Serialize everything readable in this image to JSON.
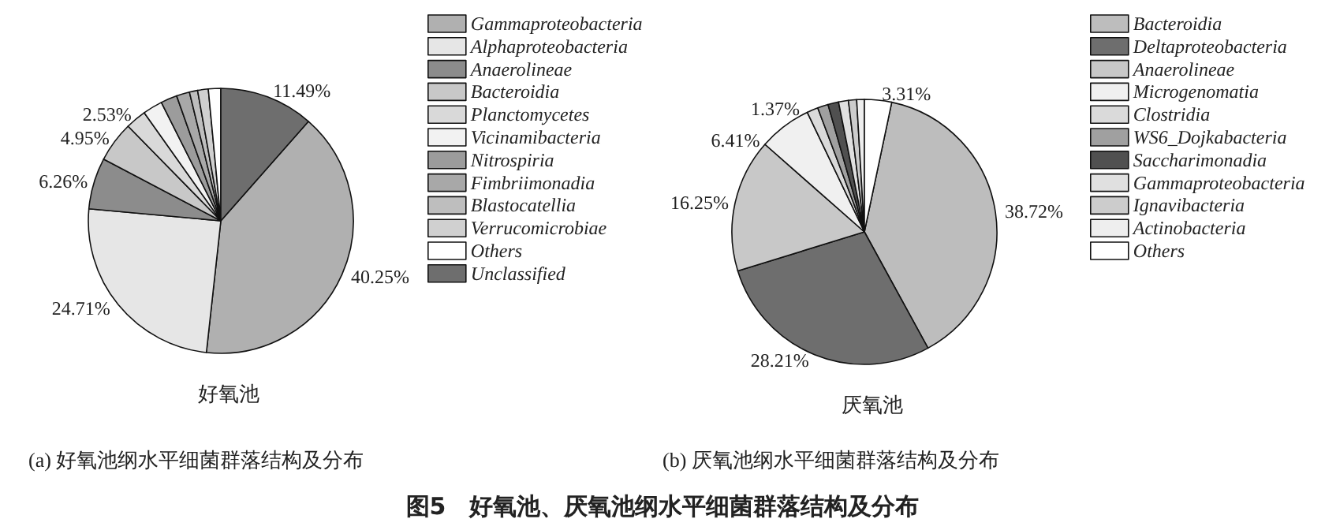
{
  "chart_data": [
    {
      "type": "pie",
      "xlabel": "好氧池",
      "annotations": [
        "(a) 好氧池纲水平细菌群落结构及分布",
        "图5　好氧池、厌氧池纲水平细菌群落结构及分布"
      ],
      "legend": "right",
      "categories": [
        "Gammaproteobacteria",
        "Alphaproteobacteria",
        "Anaerolineae",
        "Bacteroidia",
        "Planctomycetes",
        "Vicinamibacteria",
        "Nitrospiria",
        "Fimbriimonadia",
        "Blastocatellia",
        "Verrucomicrobiae",
        "Others",
        "Unclassified"
      ],
      "values": [
        40.25,
        24.71,
        6.26,
        4.95,
        2.53,
        2.4,
        2.0,
        1.6,
        1.0,
        1.3,
        1.51,
        11.49
      ],
      "value_labels": [
        "40.25%",
        "24.71%",
        "6.26%",
        "4.95%",
        "2.53%",
        null,
        null,
        null,
        null,
        null,
        null,
        "11.49%"
      ],
      "colors": [
        "#b0b0b0",
        "#e6e6e6",
        "#8c8c8c",
        "#c8c8c8",
        "#d9d9d9",
        "#f2f2f2",
        "#9c9c9c",
        "#a8a8a8",
        "#bebebe",
        "#d0d0d0",
        "#ffffff",
        "#6e6e6e"
      ]
    },
    {
      "type": "pie",
      "xlabel": "厌氧池",
      "annotations": [
        "(b) 厌氧池纲水平细菌群落结构及分布"
      ],
      "legend": "right",
      "categories": [
        "Bacteroidia",
        "Deltaproteobacteria",
        "Anaerolineae",
        "Microgenomatia",
        "Clostridia",
        "WS6_Dojkabacteria",
        "Saccharimonadia",
        "Gammaproteobacteria",
        "Ignavibacteria",
        "Actinobacteria",
        "Others"
      ],
      "values": [
        38.72,
        28.21,
        16.25,
        6.41,
        1.37,
        1.3,
        1.3,
        1.2,
        1.0,
        0.93,
        3.31
      ],
      "value_labels": [
        "38.72%",
        "28.21%",
        "16.25%",
        "6.41%",
        "1.37%",
        null,
        null,
        null,
        null,
        null,
        "3.31%"
      ],
      "colors": [
        "#bdbdbd",
        "#6e6e6e",
        "#c8c8c8",
        "#f0f0f0",
        "#dadada",
        "#a0a0a0",
        "#505050",
        "#e0e0e0",
        "#cccccc",
        "#eeeeee",
        "#ffffff"
      ]
    }
  ]
}
